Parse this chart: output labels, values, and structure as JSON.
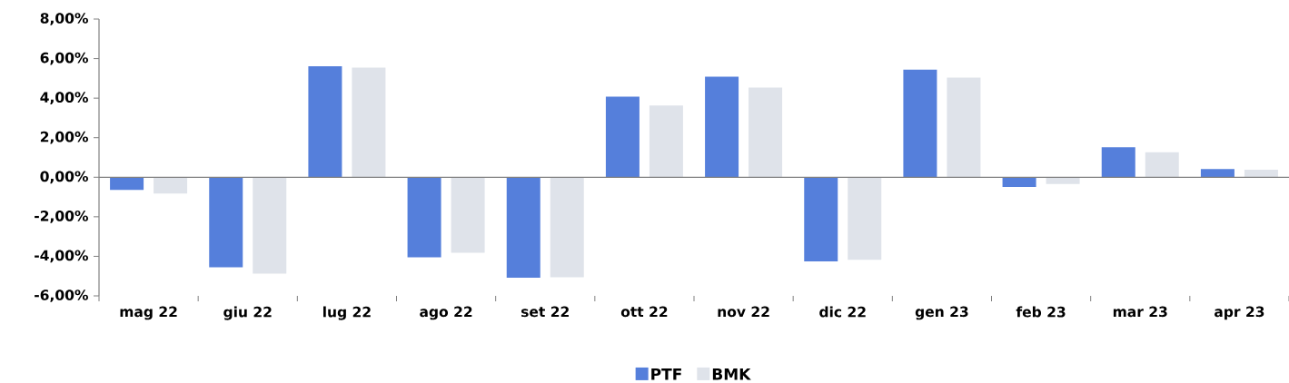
{
  "chart_data": {
    "type": "bar",
    "categories": [
      "mag 22",
      "giu 22",
      "lug 22",
      "ago 22",
      "set 22",
      "ott 22",
      "nov 22",
      "dic 22",
      "gen 23",
      "feb 23",
      "mar 23",
      "apr 23"
    ],
    "series": [
      {
        "name": "PTF",
        "color": "#557fdb",
        "values": [
          -0.64,
          -4.55,
          5.61,
          -4.05,
          -5.08,
          4.07,
          5.08,
          -4.26,
          5.44,
          -0.49,
          1.52,
          0.42
        ]
      },
      {
        "name": "BMK",
        "color": "#dfe3ea",
        "values": [
          -0.83,
          -4.87,
          5.54,
          -3.82,
          -5.06,
          3.63,
          4.53,
          -4.18,
          5.04,
          -0.34,
          1.26,
          0.38
        ]
      }
    ],
    "ylim": [
      -6,
      8
    ],
    "yticks": [
      {
        "value": -6,
        "label": "-6,00%"
      },
      {
        "value": -4,
        "label": "-4,00%"
      },
      {
        "value": -2,
        "label": "-2,00%"
      },
      {
        "value": 0,
        "label": "0,00%"
      },
      {
        "value": 2,
        "label": "2,00%"
      },
      {
        "value": 4,
        "label": "4,00%"
      },
      {
        "value": 6,
        "label": "6,00%"
      },
      {
        "value": 8,
        "label": "8,00%"
      }
    ],
    "legend": "bottom"
  }
}
